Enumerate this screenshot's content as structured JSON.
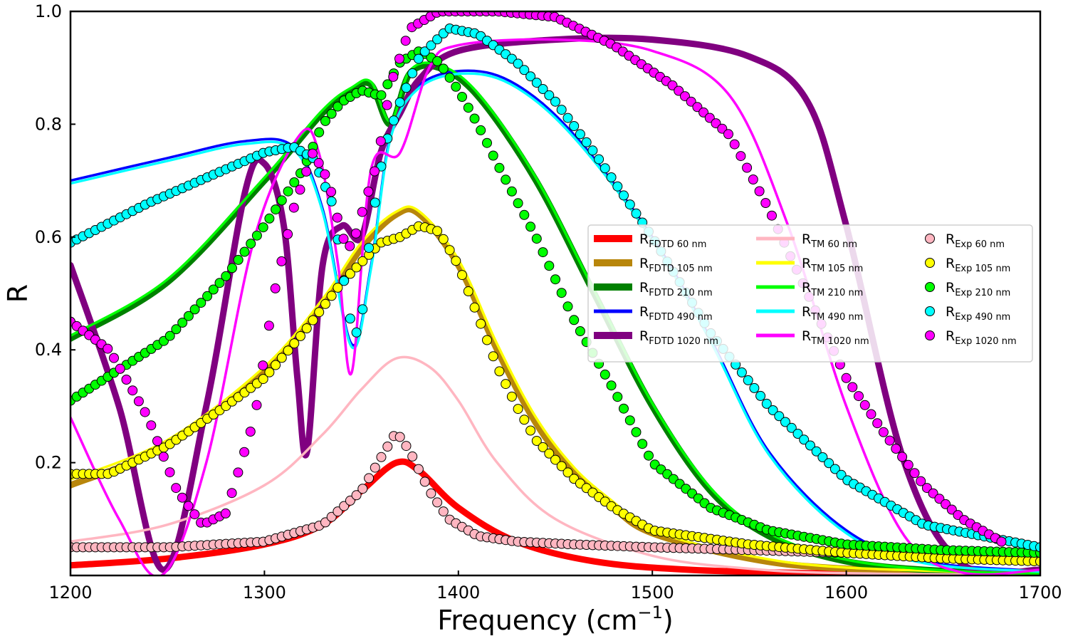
{
  "chart_data": {
    "type": "line",
    "xlabel_main": "Frequency (cm",
    "xlabel_sup": "−1",
    "xlabel_close": ")",
    "ylabel": "R",
    "xlim": [
      1200,
      1700
    ],
    "ylim": [
      0,
      1.0
    ],
    "xticks": [
      "1200",
      "1300",
      "1400",
      "1500",
      "1600",
      "1700"
    ],
    "xtick_values": [
      1200,
      1300,
      1400,
      1500,
      1600,
      1700
    ],
    "yticks": [
      "0.2",
      "0.4",
      "0.6",
      "0.8",
      "1.0"
    ],
    "ytick_values": [
      0.2,
      0.4,
      0.6,
      0.8,
      1.0
    ],
    "grid": false,
    "legend_position": "center-right",
    "series": [
      {
        "label_main": "R",
        "label_sub": "FDTD 60 nm",
        "color": "#ff0000",
        "style": "thick-line",
        "x": [
          1200,
          1250,
          1300,
          1330,
          1350,
          1368,
          1380,
          1400,
          1430,
          1470,
          1520,
          1600,
          1700
        ],
        "y": [
          0.018,
          0.03,
          0.055,
          0.09,
          0.15,
          0.2,
          0.185,
          0.12,
          0.06,
          0.025,
          0.01,
          0.003,
          0.001
        ]
      },
      {
        "label_main": "R",
        "label_sub": "FDTD 105 nm",
        "color": "#b8860b",
        "style": "thick-line",
        "x": [
          1200,
          1250,
          1300,
          1330,
          1350,
          1368,
          1380,
          1400,
          1420,
          1440,
          1460,
          1480,
          1500,
          1550,
          1600,
          1700
        ],
        "y": [
          0.16,
          0.23,
          0.36,
          0.48,
          0.58,
          0.64,
          0.64,
          0.55,
          0.4,
          0.27,
          0.18,
          0.12,
          0.075,
          0.03,
          0.012,
          0.003
        ]
      },
      {
        "label_main": "R",
        "label_sub": "FDTD 210 nm",
        "color": "#008000",
        "style": "thick-line",
        "x": [
          1200,
          1250,
          1300,
          1330,
          1345,
          1355,
          1365,
          1375,
          1390,
          1410,
          1440,
          1470,
          1500,
          1530,
          1560,
          1600,
          1650,
          1700
        ],
        "y": [
          0.42,
          0.52,
          0.7,
          0.82,
          0.86,
          0.87,
          0.8,
          0.89,
          0.9,
          0.85,
          0.7,
          0.5,
          0.3,
          0.15,
          0.07,
          0.025,
          0.008,
          0.003
        ]
      },
      {
        "label_main": "R",
        "label_sub": "FDTD 490 nm",
        "color": "#0000ff",
        "style": "thin-line",
        "x": [
          1200,
          1250,
          1290,
          1315,
          1330,
          1345,
          1355,
          1365,
          1380,
          1405,
          1430,
          1460,
          1500,
          1530,
          1560,
          1600,
          1640,
          1700
        ],
        "y": [
          0.7,
          0.74,
          0.77,
          0.76,
          0.65,
          0.41,
          0.55,
          0.78,
          0.87,
          0.895,
          0.87,
          0.78,
          0.6,
          0.42,
          0.22,
          0.08,
          0.025,
          0.008
        ]
      },
      {
        "label_main": "R",
        "label_sub": "FDTD 1020 nm",
        "color": "#800080",
        "style": "thick-line",
        "x": [
          1200,
          1225,
          1248,
          1270,
          1290,
          1300,
          1310,
          1317,
          1322,
          1330,
          1340,
          1350,
          1360,
          1370,
          1380,
          1400,
          1450,
          1500,
          1550,
          1580,
          1600,
          1630,
          1660,
          1700
        ],
        "y": [
          0.55,
          0.3,
          0.01,
          0.3,
          0.68,
          0.73,
          0.62,
          0.35,
          0.22,
          0.55,
          0.62,
          0.6,
          0.75,
          0.82,
          0.88,
          0.93,
          0.95,
          0.95,
          0.92,
          0.84,
          0.62,
          0.2,
          0.02,
          0.01
        ]
      },
      {
        "label_main": "R",
        "label_sub": "TM 60 nm",
        "color": "#ffb6c1",
        "style": "thin-line",
        "x": [
          1200,
          1250,
          1300,
          1330,
          1350,
          1368,
          1385,
          1400,
          1420,
          1450,
          1500,
          1550,
          1600,
          1700
        ],
        "y": [
          0.06,
          0.09,
          0.16,
          0.25,
          0.33,
          0.385,
          0.37,
          0.31,
          0.2,
          0.1,
          0.035,
          0.012,
          0.004,
          0.001
        ]
      },
      {
        "label_main": "R",
        "label_sub": "TM 105 nm",
        "color": "#ffff00",
        "style": "thin-line",
        "x": [
          1200,
          1250,
          1300,
          1330,
          1350,
          1368,
          1380,
          1400,
          1420,
          1440,
          1460,
          1480,
          1500,
          1550,
          1600,
          1700
        ],
        "y": [
          0.17,
          0.24,
          0.37,
          0.49,
          0.59,
          0.645,
          0.645,
          0.56,
          0.41,
          0.28,
          0.19,
          0.13,
          0.08,
          0.035,
          0.014,
          0.003
        ]
      },
      {
        "label_main": "R",
        "label_sub": "TM 210 nm",
        "color": "#00ff00",
        "style": "thin-line",
        "x": [
          1200,
          1250,
          1300,
          1330,
          1345,
          1355,
          1365,
          1375,
          1390,
          1410,
          1440,
          1470,
          1500,
          1530,
          1560,
          1600,
          1650,
          1700
        ],
        "y": [
          0.425,
          0.525,
          0.705,
          0.825,
          0.865,
          0.875,
          0.805,
          0.895,
          0.905,
          0.855,
          0.705,
          0.505,
          0.305,
          0.155,
          0.075,
          0.028,
          0.009,
          0.003
        ]
      },
      {
        "label_main": "R",
        "label_sub": "TM 490 nm",
        "color": "#00ffff",
        "style": "thin-line",
        "x": [
          1200,
          1250,
          1290,
          1315,
          1330,
          1345,
          1355,
          1365,
          1380,
          1405,
          1430,
          1460,
          1500,
          1530,
          1560,
          1600,
          1640,
          1700
        ],
        "y": [
          0.695,
          0.735,
          0.765,
          0.755,
          0.645,
          0.405,
          0.545,
          0.775,
          0.865,
          0.89,
          0.865,
          0.775,
          0.595,
          0.415,
          0.215,
          0.075,
          0.022,
          0.007
        ]
      },
      {
        "label_main": "R",
        "label_sub": "TM 1020 nm",
        "color": "#ff00ff",
        "style": "thin-line",
        "x": [
          1200,
          1225,
          1247,
          1270,
          1295,
          1318,
          1328,
          1338,
          1345,
          1355,
          1370,
          1385,
          1400,
          1450,
          1500,
          1540,
          1570,
          1600,
          1630,
          1660,
          1700
        ],
        "y": [
          0.28,
          0.1,
          0.0,
          0.2,
          0.6,
          0.78,
          0.75,
          0.55,
          0.36,
          0.72,
          0.75,
          0.9,
          0.94,
          0.95,
          0.93,
          0.85,
          0.62,
          0.3,
          0.07,
          0.005,
          0.01
        ]
      },
      {
        "label_main": "R",
        "label_sub": "Exp 60 nm",
        "color": "#ffb6c1",
        "style": "marker",
        "x": [
          1200,
          1250,
          1300,
          1330,
          1350,
          1362,
          1368,
          1375,
          1385,
          1395,
          1410,
          1430,
          1460,
          1500,
          1550,
          1600,
          1650,
          1700
        ],
        "y": [
          0.05,
          0.05,
          0.06,
          0.09,
          0.15,
          0.22,
          0.255,
          0.22,
          0.15,
          0.1,
          0.07,
          0.06,
          0.055,
          0.05,
          0.045,
          0.04,
          0.035,
          0.03
        ]
      },
      {
        "label_main": "R",
        "label_sub": "Exp 105 nm",
        "color": "#ffff00",
        "style": "marker",
        "x": [
          1200,
          1220,
          1250,
          1280,
          1300,
          1320,
          1340,
          1360,
          1370,
          1380,
          1390,
          1400,
          1410,
          1420,
          1430,
          1440,
          1460,
          1480,
          1500,
          1550,
          1600,
          1650,
          1700
        ],
        "y": [
          0.18,
          0.18,
          0.23,
          0.3,
          0.35,
          0.43,
          0.52,
          0.59,
          0.6,
          0.62,
          0.61,
          0.55,
          0.46,
          0.37,
          0.3,
          0.24,
          0.17,
          0.12,
          0.08,
          0.055,
          0.04,
          0.03,
          0.025
        ]
      },
      {
        "label_main": "R",
        "label_sub": "Exp 210 nm",
        "color": "#00ff00",
        "style": "marker",
        "x": [
          1200,
          1250,
          1280,
          1300,
          1320,
          1330,
          1340,
          1350,
          1360,
          1370,
          1380,
          1390,
          1400,
          1410,
          1420,
          1440,
          1460,
          1480,
          1500,
          1530,
          1560,
          1600,
          1650,
          1700
        ],
        "y": [
          0.31,
          0.42,
          0.53,
          0.62,
          0.72,
          0.8,
          0.84,
          0.86,
          0.85,
          0.91,
          0.93,
          0.91,
          0.86,
          0.8,
          0.73,
          0.6,
          0.45,
          0.33,
          0.2,
          0.12,
          0.08,
          0.055,
          0.045,
          0.04
        ]
      },
      {
        "label_main": "R",
        "label_sub": "Exp 490 nm",
        "color": "#00ffff",
        "style": "marker",
        "x": [
          1200,
          1240,
          1280,
          1300,
          1315,
          1325,
          1335,
          1342,
          1346,
          1350,
          1355,
          1362,
          1370,
          1380,
          1395,
          1410,
          1430,
          1450,
          1470,
          1500,
          1530,
          1560,
          1600,
          1640,
          1700
        ],
        "y": [
          0.59,
          0.66,
          0.72,
          0.75,
          0.76,
          0.74,
          0.66,
          0.5,
          0.42,
          0.45,
          0.62,
          0.76,
          0.84,
          0.92,
          0.97,
          0.96,
          0.91,
          0.84,
          0.75,
          0.6,
          0.43,
          0.3,
          0.17,
          0.09,
          0.05
        ]
      },
      {
        "label_main": "R",
        "label_sub": "Exp 1020 nm",
        "color": "#ff00ff",
        "style": "marker",
        "x": [
          1200,
          1220,
          1240,
          1255,
          1268,
          1280,
          1295,
          1305,
          1315,
          1325,
          1333,
          1340,
          1345,
          1350,
          1358,
          1365,
          1375,
          1390,
          1420,
          1450,
          1480,
          1510,
          1540,
          1560,
          1580,
          1600,
          1620,
          1640,
          1660,
          1680
        ],
        "y": [
          0.45,
          0.4,
          0.28,
          0.15,
          0.09,
          0.11,
          0.28,
          0.5,
          0.65,
          0.75,
          0.7,
          0.6,
          0.58,
          0.64,
          0.73,
          0.87,
          0.97,
          1.0,
          1.0,
          0.99,
          0.94,
          0.87,
          0.78,
          0.65,
          0.5,
          0.35,
          0.25,
          0.16,
          0.1,
          0.06
        ]
      }
    ]
  }
}
